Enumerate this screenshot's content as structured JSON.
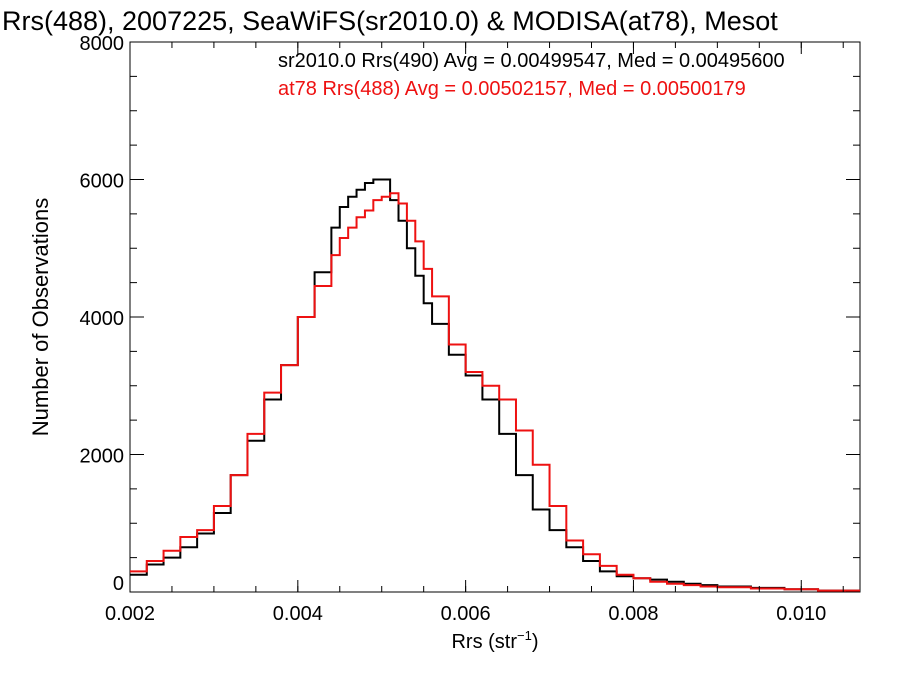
{
  "chart_data": {
    "type": "line",
    "title": "Rrs(488), 2007225, SeaWiFS(sr2010.0) & MODISA(at78), Mesot",
    "xlabel": "Rrs (str",
    "xlabel_sup": "−1",
    "xlabel_close": ")",
    "ylabel": "Number of Observations",
    "xlim": [
      0.002,
      0.0107
    ],
    "ylim": [
      0,
      8000
    ],
    "x_ticks": [
      0.002,
      0.004,
      0.006,
      0.008,
      0.01
    ],
    "x_tick_labels": [
      "0.002",
      "0.004",
      "0.006",
      "0.008",
      "0.010"
    ],
    "y_ticks": [
      0,
      2000,
      4000,
      6000,
      8000
    ],
    "y_tick_labels": [
      "0",
      "2000",
      "4000",
      "6000",
      "8000"
    ],
    "grid": false,
    "legend_placement": "top-right",
    "colors": {
      "axis": "#000000",
      "black_series": "#000000",
      "red_series": "#ee1111"
    },
    "series": [
      {
        "name": "sr2010.0 Rrs(490) Avg = 0.00499547, Med = 0.00495600",
        "color": "#000000",
        "x": [
          0.002,
          0.0022,
          0.0024,
          0.0026,
          0.0028,
          0.003,
          0.0032,
          0.0034,
          0.0036,
          0.0038,
          0.004,
          0.0042,
          0.0044,
          0.0045,
          0.0046,
          0.0047,
          0.0048,
          0.0049,
          0.005,
          0.0051,
          0.0052,
          0.0053,
          0.0054,
          0.0055,
          0.0056,
          0.0058,
          0.006,
          0.0062,
          0.0064,
          0.0066,
          0.0068,
          0.007,
          0.0072,
          0.0074,
          0.0076,
          0.0078,
          0.008,
          0.0082,
          0.0084,
          0.0086,
          0.0088,
          0.009,
          0.0094,
          0.0098,
          0.0102,
          0.0107
        ],
        "y": [
          250,
          400,
          500,
          650,
          850,
          1150,
          1700,
          2200,
          2800,
          3300,
          4000,
          4650,
          5300,
          5600,
          5750,
          5850,
          5950,
          6000,
          6000,
          5700,
          5400,
          5000,
          4600,
          4200,
          3900,
          3450,
          3150,
          2800,
          2300,
          1700,
          1200,
          900,
          650,
          450,
          300,
          230,
          200,
          180,
          150,
          120,
          100,
          80,
          60,
          40,
          20,
          10
        ]
      },
      {
        "name": "at78 Rrs(488) Avg = 0.00502157, Med = 0.00500179",
        "color": "#ee1111",
        "x": [
          0.002,
          0.0022,
          0.0024,
          0.0026,
          0.0028,
          0.003,
          0.0032,
          0.0034,
          0.0036,
          0.0038,
          0.004,
          0.0042,
          0.0044,
          0.0045,
          0.0046,
          0.0047,
          0.0048,
          0.0049,
          0.005,
          0.0051,
          0.0052,
          0.0053,
          0.0054,
          0.0055,
          0.0056,
          0.0058,
          0.006,
          0.0062,
          0.0064,
          0.0066,
          0.0068,
          0.007,
          0.0072,
          0.0074,
          0.0076,
          0.0078,
          0.008,
          0.0082,
          0.0084,
          0.0086,
          0.0088,
          0.009,
          0.0094,
          0.0098,
          0.0102,
          0.0107
        ],
        "y": [
          300,
          450,
          600,
          800,
          900,
          1250,
          1700,
          2300,
          2900,
          3300,
          4000,
          4450,
          4900,
          5150,
          5300,
          5450,
          5550,
          5700,
          5750,
          5800,
          5650,
          5400,
          5100,
          4700,
          4300,
          3600,
          3200,
          3000,
          2800,
          2350,
          1850,
          1250,
          750,
          550,
          380,
          250,
          200,
          150,
          120,
          100,
          80,
          70,
          50,
          40,
          20,
          10
        ]
      }
    ]
  }
}
